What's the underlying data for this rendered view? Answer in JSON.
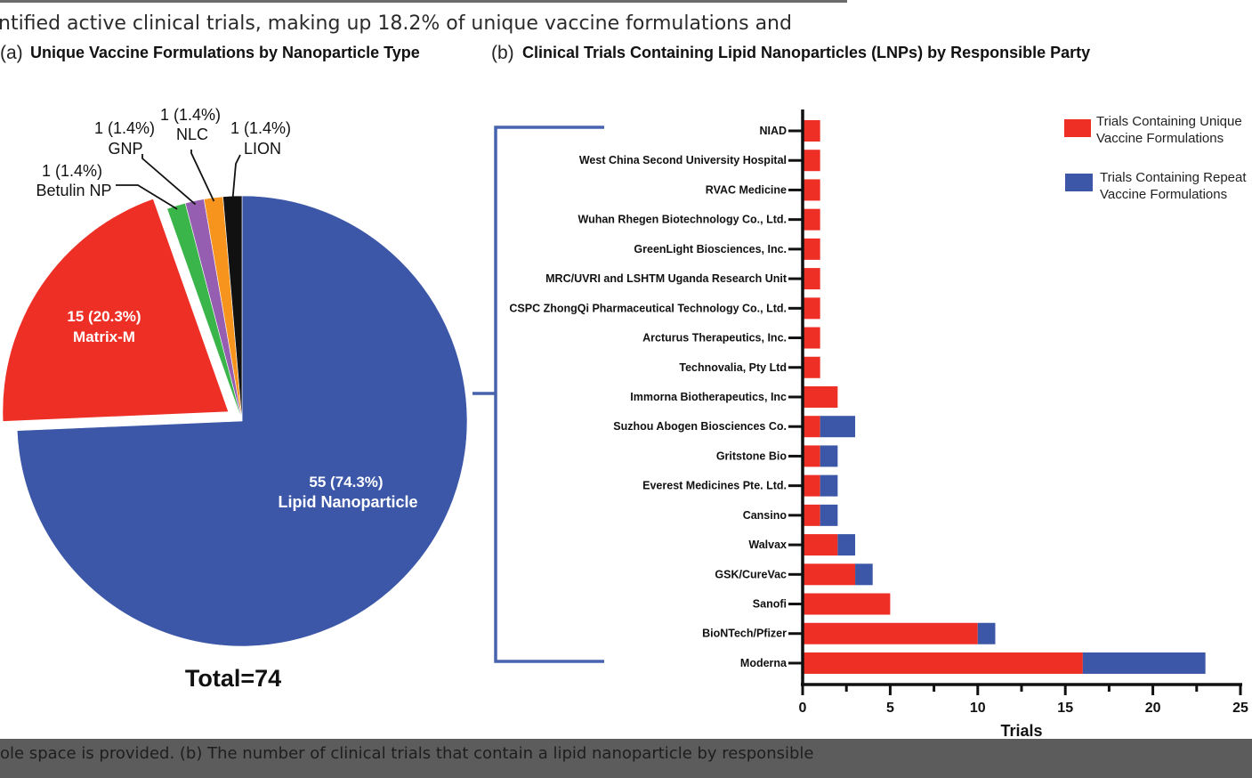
{
  "page": {
    "top_caption": "ntified active clinical trials, making up 18.2% of unique vaccine formulations and",
    "bottom_caption": "ole space is provided. (b) The number of clinical trials that contain a lipid nanoparticle by responsible"
  },
  "colors": {
    "lnp": "#3c57a8",
    "matrix_m": "#ed2f26",
    "betulin": "#39b54a",
    "gnp": "#955eb0",
    "nlc": "#f7941d",
    "lion": "#111111",
    "bracket": "#4763ad"
  },
  "chart_data": [
    {
      "type": "pie",
      "panel_label": "(a)",
      "title": "Unique Vaccine Formulations by Nanoparticle Type",
      "total_label": "Total=74",
      "slices": [
        {
          "name": "Lipid Nanoparticle",
          "value": 55,
          "pct": "74.3%",
          "label_count": "55 (74.3%)",
          "label_name": "Lipid Nanoparticle",
          "color": "#3c57a8",
          "exploded": false
        },
        {
          "name": "Matrix-M",
          "value": 15,
          "pct": "20.3%",
          "label_count": "15 (20.3%)",
          "label_name": "Matrix-M",
          "color": "#ed2f26",
          "exploded": true
        },
        {
          "name": "Betulin NP",
          "value": 1,
          "pct": "1.4%",
          "label_count": "1 (1.4%)",
          "label_name": "Betulin NP",
          "color": "#39b54a",
          "exploded": false
        },
        {
          "name": "GNP",
          "value": 1,
          "pct": "1.4%",
          "label_count": "1 (1.4%)",
          "label_name": "GNP",
          "color": "#955eb0",
          "exploded": false
        },
        {
          "name": "NLC",
          "value": 1,
          "pct": "1.4%",
          "label_count": "1 (1.4%)",
          "label_name": "NLC",
          "color": "#f7941d",
          "exploded": false
        },
        {
          "name": "LION",
          "value": 1,
          "pct": "1.4%",
          "label_count": "1 (1.4%)",
          "label_name": "LION",
          "color": "#111111",
          "exploded": false
        }
      ]
    },
    {
      "type": "bar",
      "orientation": "horizontal",
      "stacked": true,
      "panel_label": "(b)",
      "title": "Clinical Trials Containing Lipid Nanoparticles (LNPs) by Responsible Party",
      "xlabel": "Trials",
      "xlim": [
        0,
        25
      ],
      "xticks": [
        0,
        5,
        10,
        15,
        20,
        25
      ],
      "categories": [
        "NIAD",
        "West China Second University Hospital",
        "RVAC Medicine",
        "Wuhan Rhegen Biotechnology Co., Ltd.",
        "GreenLight Biosciences, Inc.",
        "MRC/UVRI and LSHTM Uganda Research Unit",
        "CSPC ZhongQi Pharmaceutical Technology Co., Ltd.",
        "Arcturus Therapeutics, Inc.",
        "Technovalia, Pty Ltd",
        "Immorna Biotherapeutics, Inc",
        "Suzhou Abogen Biosciences Co.",
        "Gritstone Bio",
        "Everest Medicines Pte. Ltd.",
        "Cansino",
        "Walvax",
        "GSK/CureVac",
        "Sanofi",
        "BioNTech/Pfizer",
        "Moderna"
      ],
      "series": [
        {
          "name": "Trials Containing Unique Vaccine Formulations",
          "legend_lines": [
            "Trials Containing Unique",
            "Vaccine Formulations"
          ],
          "color": "#ed2f26",
          "values": [
            1,
            1,
            1,
            1,
            1,
            1,
            1,
            1,
            1,
            2,
            1,
            1,
            1,
            1,
            2,
            3,
            5,
            10,
            16
          ]
        },
        {
          "name": "Trials Containing Repeat Vaccine Formulations",
          "legend_lines": [
            "Trials Containing Repeat",
            "Vaccine Formulations"
          ],
          "color": "#3c57a8",
          "values": [
            0,
            0,
            0,
            0,
            0,
            0,
            0,
            0,
            0,
            0,
            2,
            1,
            1,
            1,
            1,
            1,
            0,
            1,
            7
          ]
        }
      ]
    }
  ]
}
